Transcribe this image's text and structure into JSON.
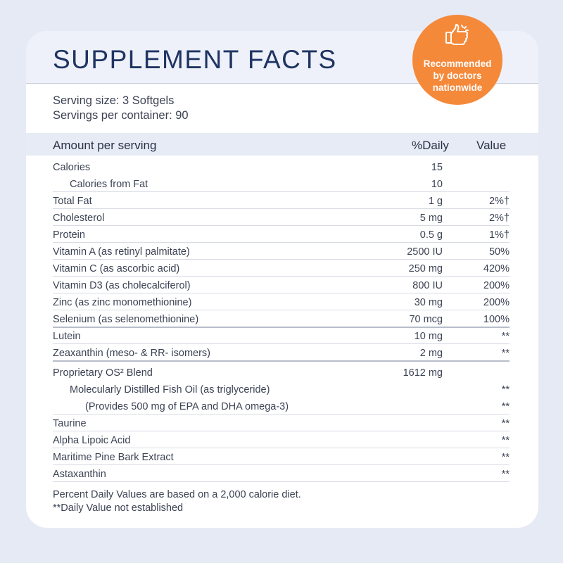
{
  "title": "SUPPLEMENT FACTS",
  "serving_size": "Serving size: 3 Softgels",
  "servings_per_container": "Servings per container: 90",
  "columns": {
    "amount": "Amount per serving",
    "daily": "%Daily",
    "value": "Value"
  },
  "rows": [
    {
      "name": "Calories",
      "amount": "15",
      "dv": ""
    },
    {
      "name": "Calories from Fat",
      "amount": "10",
      "dv": ""
    },
    {
      "name": "Total Fat",
      "amount": "1 g",
      "dv": "2%†"
    },
    {
      "name": "Cholesterol",
      "amount": "5 mg",
      "dv": "2%†"
    },
    {
      "name": "Protein",
      "amount": "0.5 g",
      "dv": "1%†"
    },
    {
      "name": "Vitamin A (as retinyl palmitate)",
      "amount": "2500 IU",
      "dv": "50%"
    },
    {
      "name": "Vitamin C (as ascorbic acid)",
      "amount": "250 mg",
      "dv": "420%"
    },
    {
      "name": "Vitamin D3 (as cholecalciferol)",
      "amount": "800 IU",
      "dv": "200%"
    },
    {
      "name": "Zinc (as zinc monomethionine)",
      "amount": "30 mg",
      "dv": "200%"
    },
    {
      "name": "Selenium (as selenomethionine)",
      "amount": "70 mcg",
      "dv": "100%"
    },
    {
      "name": "Lutein",
      "amount": "10 mg",
      "dv": "**"
    },
    {
      "name": "Zeaxanthin (meso- & RR- isomers)",
      "amount": "2 mg",
      "dv": "**"
    },
    {
      "name": "Proprietary OS² Blend",
      "amount": "1612 mg",
      "dv": ""
    },
    {
      "name": "Molecularly Distilled Fish Oil (as triglyceride)",
      "amount": "",
      "dv": "**"
    },
    {
      "name": "(Provides 500 mg of EPA and DHA omega-3)",
      "amount": "",
      "dv": "**"
    },
    {
      "name": "Taurine",
      "amount": "",
      "dv": "**"
    },
    {
      "name": "Alpha Lipoic Acid",
      "amount": "",
      "dv": "**"
    },
    {
      "name": "Maritime Pine Bark Extract",
      "amount": "",
      "dv": "**"
    },
    {
      "name": "Astaxanthin",
      "amount": "",
      "dv": "**"
    }
  ],
  "footnotes": [
    "Percent Daily Values are based on a 2,000 calorie diet.",
    "**Daily Value not established"
  ],
  "badge": {
    "icon": "thumbs-up-icon",
    "text_line1": "Recommended",
    "text_line2": "by doctors",
    "text_line3": "nationwide",
    "color": "#f5893a"
  },
  "colors": {
    "background": "#e6eaf5",
    "title": "#1f3463",
    "header_band": "#eef1f9"
  }
}
